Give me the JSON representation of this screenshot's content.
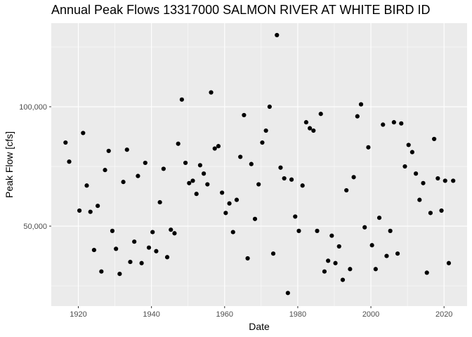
{
  "chart_data": {
    "type": "scatter",
    "title": "Annual Peak Flows 13317000 SALMON RIVER AT WHITE BIRD ID",
    "xlabel": "Date",
    "ylabel": "Peak Flow [cfs]",
    "xlim": [
      1912.6,
      2026.3
    ],
    "ylim": [
      16500,
      135000
    ],
    "x_ticks": [
      1920,
      1940,
      1960,
      1980,
      2000,
      2020
    ],
    "x_tick_labels": [
      "1920",
      "1940",
      "1960",
      "1980",
      "2000",
      "2020"
    ],
    "y_ticks": [
      50000,
      100000
    ],
    "y_tick_labels": [
      "50,000",
      "100,000"
    ],
    "grid": true,
    "legend": "none",
    "colors": {
      "panel": "#ebebeb",
      "grid_major": "#ffffff",
      "point": "#000000"
    },
    "points": [
      {
        "x": 1916.5,
        "y": 85000
      },
      {
        "x": 1917.5,
        "y": 77000
      },
      {
        "x": 1920.3,
        "y": 56500
      },
      {
        "x": 1921.3,
        "y": 89000
      },
      {
        "x": 1922.3,
        "y": 67000
      },
      {
        "x": 1923.3,
        "y": 56000
      },
      {
        "x": 1924.3,
        "y": 40000
      },
      {
        "x": 1925.3,
        "y": 58500
      },
      {
        "x": 1926.3,
        "y": 31000
      },
      {
        "x": 1927.3,
        "y": 73500
      },
      {
        "x": 1928.3,
        "y": 81500
      },
      {
        "x": 1929.3,
        "y": 48000
      },
      {
        "x": 1930.3,
        "y": 40500
      },
      {
        "x": 1931.3,
        "y": 30000
      },
      {
        "x": 1932.3,
        "y": 68500
      },
      {
        "x": 1933.3,
        "y": 82000
      },
      {
        "x": 1934.2,
        "y": 35000
      },
      {
        "x": 1935.3,
        "y": 43500
      },
      {
        "x": 1936.3,
        "y": 71000
      },
      {
        "x": 1937.3,
        "y": 34500
      },
      {
        "x": 1938.3,
        "y": 76500
      },
      {
        "x": 1939.3,
        "y": 41000
      },
      {
        "x": 1940.3,
        "y": 47500
      },
      {
        "x": 1941.3,
        "y": 39500
      },
      {
        "x": 1942.3,
        "y": 60000
      },
      {
        "x": 1943.3,
        "y": 74000
      },
      {
        "x": 1944.3,
        "y": 37000
      },
      {
        "x": 1945.3,
        "y": 48500
      },
      {
        "x": 1946.3,
        "y": 47000
      },
      {
        "x": 1947.3,
        "y": 84500
      },
      {
        "x": 1948.3,
        "y": 103000
      },
      {
        "x": 1949.3,
        "y": 76500
      },
      {
        "x": 1950.3,
        "y": 68000
      },
      {
        "x": 1951.3,
        "y": 69000
      },
      {
        "x": 1952.3,
        "y": 63500
      },
      {
        "x": 1953.3,
        "y": 75500
      },
      {
        "x": 1954.3,
        "y": 72000
      },
      {
        "x": 1955.3,
        "y": 67500
      },
      {
        "x": 1956.3,
        "y": 106000
      },
      {
        "x": 1957.3,
        "y": 82500
      },
      {
        "x": 1958.3,
        "y": 83500
      },
      {
        "x": 1959.3,
        "y": 64000
      },
      {
        "x": 1960.3,
        "y": 55500
      },
      {
        "x": 1961.3,
        "y": 59500
      },
      {
        "x": 1962.3,
        "y": 47500
      },
      {
        "x": 1963.3,
        "y": 61000
      },
      {
        "x": 1964.3,
        "y": 79000
      },
      {
        "x": 1965.3,
        "y": 96500
      },
      {
        "x": 1966.3,
        "y": 36500
      },
      {
        "x": 1967.3,
        "y": 76000
      },
      {
        "x": 1968.3,
        "y": 53000
      },
      {
        "x": 1969.3,
        "y": 67500
      },
      {
        "x": 1970.3,
        "y": 85000
      },
      {
        "x": 1971.3,
        "y": 90000
      },
      {
        "x": 1972.3,
        "y": 100000
      },
      {
        "x": 1973.3,
        "y": 38500
      },
      {
        "x": 1974.3,
        "y": 130000
      },
      {
        "x": 1975.3,
        "y": 74500
      },
      {
        "x": 1976.3,
        "y": 70000
      },
      {
        "x": 1977.3,
        "y": 22000
      },
      {
        "x": 1978.3,
        "y": 69500
      },
      {
        "x": 1979.3,
        "y": 54000
      },
      {
        "x": 1980.3,
        "y": 48000
      },
      {
        "x": 1981.3,
        "y": 67000
      },
      {
        "x": 1982.3,
        "y": 93500
      },
      {
        "x": 1983.3,
        "y": 91000
      },
      {
        "x": 1984.3,
        "y": 90000
      },
      {
        "x": 1985.3,
        "y": 48000
      },
      {
        "x": 1986.3,
        "y": 97000
      },
      {
        "x": 1987.3,
        "y": 31000
      },
      {
        "x": 1988.3,
        "y": 35500
      },
      {
        "x": 1989.3,
        "y": 46000
      },
      {
        "x": 1990.3,
        "y": 34500
      },
      {
        "x": 1991.3,
        "y": 41500
      },
      {
        "x": 1992.3,
        "y": 27500
      },
      {
        "x": 1993.3,
        "y": 65000
      },
      {
        "x": 1994.3,
        "y": 32000
      },
      {
        "x": 1995.3,
        "y": 70500
      },
      {
        "x": 1996.3,
        "y": 96000
      },
      {
        "x": 1997.3,
        "y": 101000
      },
      {
        "x": 1998.3,
        "y": 49500
      },
      {
        "x": 1999.3,
        "y": 83000
      },
      {
        "x": 2000.3,
        "y": 42000
      },
      {
        "x": 2001.3,
        "y": 32000
      },
      {
        "x": 2002.3,
        "y": 53500
      },
      {
        "x": 2003.3,
        "y": 92500
      },
      {
        "x": 2004.3,
        "y": 37500
      },
      {
        "x": 2005.3,
        "y": 48000
      },
      {
        "x": 2006.3,
        "y": 93500
      },
      {
        "x": 2007.3,
        "y": 38500
      },
      {
        "x": 2008.3,
        "y": 93000
      },
      {
        "x": 2009.3,
        "y": 75000
      },
      {
        "x": 2010.3,
        "y": 84000
      },
      {
        "x": 2011.3,
        "y": 81000
      },
      {
        "x": 2012.3,
        "y": 72000
      },
      {
        "x": 2013.3,
        "y": 61000
      },
      {
        "x": 2014.3,
        "y": 68000
      },
      {
        "x": 2015.3,
        "y": 30500
      },
      {
        "x": 2016.3,
        "y": 55500
      },
      {
        "x": 2017.3,
        "y": 86500
      },
      {
        "x": 2018.3,
        "y": 70000
      },
      {
        "x": 2019.3,
        "y": 56500
      },
      {
        "x": 2020.3,
        "y": 69000
      },
      {
        "x": 2021.3,
        "y": 34500
      },
      {
        "x": 2022.5,
        "y": 69000
      }
    ]
  }
}
